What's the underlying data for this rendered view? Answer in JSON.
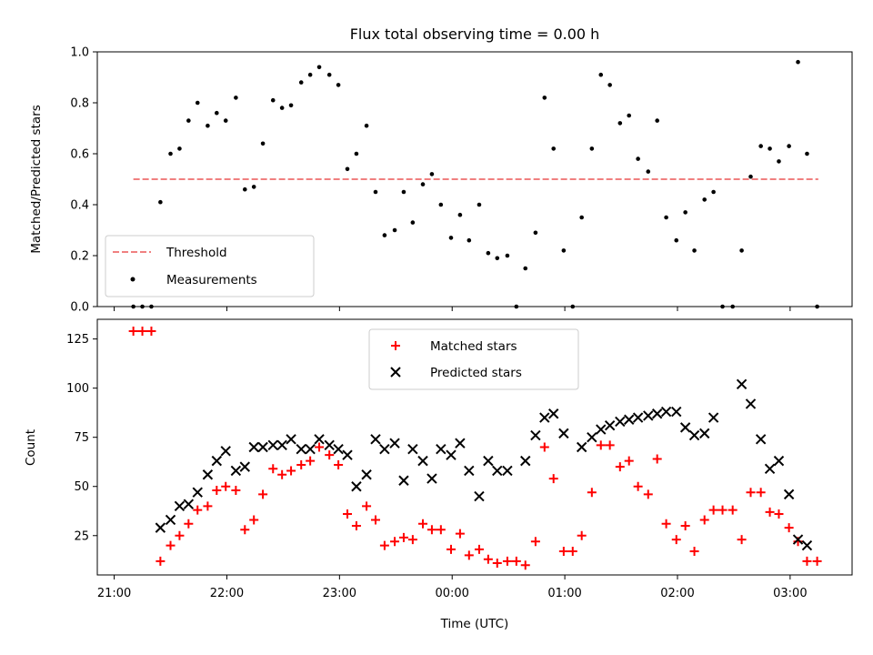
{
  "chart_data": [
    {
      "type": "scatter",
      "title": "Flux total observing time = 0.00 h",
      "xlabel": "",
      "ylabel": "Matched/Predicted stars",
      "ylim": [
        0,
        1.0
      ],
      "yticks": [
        "0.0",
        "0.2",
        "0.4",
        "0.6",
        "0.8",
        "1.0"
      ],
      "xlim_hours": [
        20.85,
        27.55
      ],
      "threshold": {
        "name": "Threshold",
        "value": 0.5,
        "x_range": [
          21.17,
          27.25
        ],
        "color": "#f08080"
      },
      "legend": {
        "placement": "lower-left",
        "entries": [
          "Threshold",
          "Measurements"
        ]
      },
      "series": [
        {
          "name": "Measurements",
          "color": "#000000",
          "x": [
            21.17,
            21.25,
            21.33,
            21.41,
            21.5,
            21.58,
            21.66,
            21.74,
            21.83,
            21.91,
            21.99,
            22.08,
            22.16,
            22.24,
            22.32,
            22.41,
            22.49,
            22.57,
            22.66,
            22.74,
            22.82,
            22.91,
            22.99,
            23.07,
            23.15,
            23.24,
            23.32,
            23.4,
            23.49,
            23.57,
            23.65,
            23.74,
            23.82,
            23.9,
            23.99,
            24.07,
            24.15,
            24.24,
            24.32,
            24.4,
            24.49,
            24.57,
            24.65,
            24.74,
            24.82,
            24.9,
            24.99,
            25.07,
            25.15,
            25.24,
            25.32,
            25.4,
            25.49,
            25.57,
            25.65,
            25.74,
            25.82,
            25.9,
            25.99,
            26.07,
            26.15,
            26.24,
            26.32,
            26.4,
            26.49,
            26.57,
            26.65,
            26.74,
            26.82,
            26.9,
            26.99,
            27.07,
            27.15,
            27.24
          ],
          "y": [
            0.0,
            0.0,
            0.0,
            0.41,
            0.6,
            0.62,
            0.73,
            0.8,
            0.71,
            0.76,
            0.73,
            0.82,
            0.46,
            0.47,
            0.64,
            0.81,
            0.78,
            0.79,
            0.88,
            0.91,
            0.94,
            0.91,
            0.87,
            0.54,
            0.6,
            0.71,
            0.45,
            0.28,
            0.3,
            0.45,
            0.33,
            0.48,
            0.52,
            0.4,
            0.27,
            0.36,
            0.26,
            0.4,
            0.21,
            0.19,
            0.2,
            0.0,
            0.15,
            0.29,
            0.82,
            0.62,
            0.22,
            0.0,
            0.35,
            0.62,
            0.91,
            0.87,
            0.72,
            0.75,
            0.58,
            0.53,
            0.73,
            0.35,
            0.26,
            0.37,
            0.22,
            0.42,
            0.45,
            0.0,
            0.0,
            0.22,
            0.51,
            0.63,
            0.62,
            0.57,
            0.63,
            0.96,
            0.6,
            0.0
          ]
        }
      ]
    },
    {
      "type": "scatter",
      "title": "",
      "xlabel": "Time (UTC)",
      "ylabel": "Count",
      "ylim": [
        5,
        135
      ],
      "yticks": [
        "25",
        "50",
        "75",
        "100",
        "125"
      ],
      "xticks": [
        "21:00",
        "22:00",
        "23:00",
        "00:00",
        "01:00",
        "02:00",
        "03:00"
      ],
      "xlim_hours": [
        20.85,
        27.55
      ],
      "legend": {
        "placement": "upper-center",
        "entries": [
          "Matched stars",
          "Predicted stars"
        ]
      },
      "series": [
        {
          "name": "Matched stars",
          "marker": "plus",
          "color": "#ff0000",
          "x": [
            21.17,
            21.25,
            21.33,
            21.41,
            21.5,
            21.58,
            21.66,
            21.74,
            21.83,
            21.91,
            21.99,
            22.08,
            22.16,
            22.24,
            22.32,
            22.41,
            22.49,
            22.57,
            22.66,
            22.74,
            22.82,
            22.91,
            22.99,
            23.07,
            23.15,
            23.24,
            23.32,
            23.4,
            23.49,
            23.57,
            23.65,
            23.74,
            23.82,
            23.9,
            23.99,
            24.07,
            24.15,
            24.24,
            24.32,
            24.4,
            24.49,
            24.57,
            24.65,
            24.74,
            24.82,
            24.9,
            24.99,
            25.07,
            25.15,
            25.24,
            25.32,
            25.4,
            25.49,
            25.57,
            25.65,
            25.74,
            25.82,
            25.9,
            25.99,
            26.07,
            26.15,
            26.24,
            26.32,
            26.4,
            26.49,
            26.57,
            26.65,
            26.74,
            26.82,
            26.9,
            26.99,
            27.07,
            27.15,
            27.24
          ],
          "y": [
            129,
            129,
            129,
            12,
            20,
            25,
            31,
            38,
            40,
            48,
            50,
            48,
            28,
            33,
            46,
            59,
            56,
            58,
            61,
            63,
            70,
            66,
            61,
            36,
            30,
            40,
            33,
            20,
            22,
            24,
            23,
            31,
            28,
            28,
            18,
            26,
            15,
            18,
            13,
            11,
            12,
            12,
            10,
            22,
            70,
            54,
            17,
            17,
            25,
            47,
            71,
            71,
            60,
            63,
            50,
            46,
            64,
            31,
            23,
            30,
            17,
            33,
            38,
            38,
            38,
            23,
            47,
            47,
            37,
            36,
            29,
            22,
            12,
            12
          ]
        },
        {
          "name": "Predicted stars",
          "marker": "x",
          "color": "#000000",
          "x": [
            21.41,
            21.5,
            21.58,
            21.66,
            21.74,
            21.83,
            21.91,
            21.99,
            22.08,
            22.16,
            22.24,
            22.32,
            22.41,
            22.49,
            22.57,
            22.66,
            22.74,
            22.82,
            22.91,
            22.99,
            23.07,
            23.15,
            23.24,
            23.32,
            23.4,
            23.49,
            23.57,
            23.65,
            23.74,
            23.82,
            23.9,
            23.99,
            24.07,
            24.15,
            24.24,
            24.32,
            24.4,
            24.49,
            24.65,
            24.74,
            24.82,
            24.9,
            24.99,
            25.15,
            25.24,
            25.32,
            25.4,
            25.49,
            25.57,
            25.65,
            25.74,
            25.82,
            25.9,
            25.99,
            26.07,
            26.15,
            26.24,
            26.32,
            26.57,
            26.65,
            26.74,
            26.82,
            26.9,
            26.99,
            27.07,
            27.15
          ],
          "y": [
            29,
            33,
            40,
            41,
            47,
            56,
            63,
            68,
            58,
            60,
            70,
            70,
            71,
            71,
            74,
            69,
            69,
            74,
            71,
            69,
            66,
            50,
            56,
            74,
            69,
            72,
            53,
            69,
            63,
            54,
            69,
            66,
            72,
            58,
            45,
            63,
            58,
            58,
            63,
            76,
            85,
            87,
            77,
            70,
            75,
            79,
            81,
            83,
            84,
            85,
            86,
            87,
            88,
            88,
            80,
            76,
            77,
            85,
            102,
            92,
            74,
            59,
            63,
            46,
            23,
            20
          ]
        }
      ]
    }
  ]
}
